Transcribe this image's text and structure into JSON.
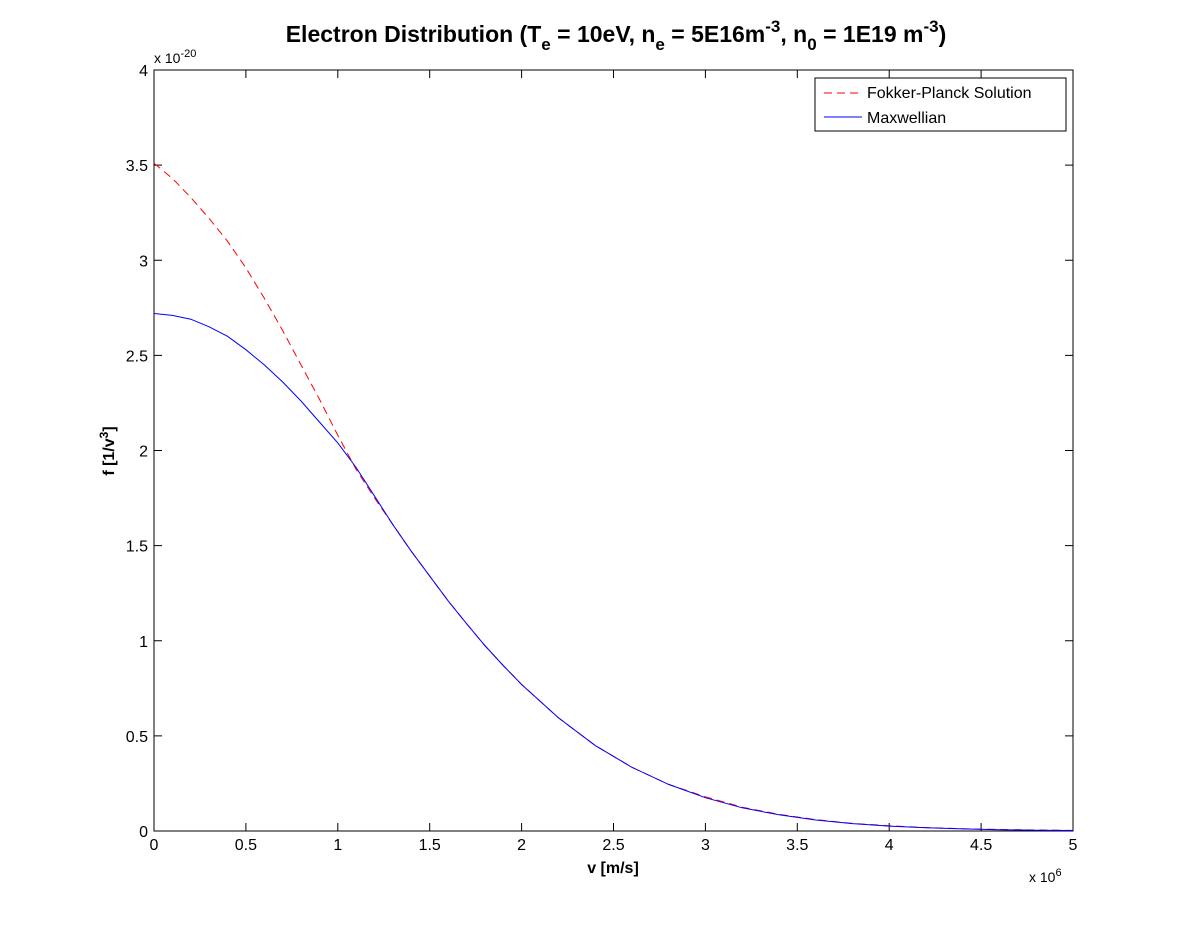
{
  "chart_data": {
    "type": "line",
    "title": {
      "text": "Electron Distribution (T",
      "sub1": "e",
      "text2": " = 10eV, n",
      "sub2": "e",
      "text3": " = 5E16m",
      "sup3": "-3",
      "text4": ", n",
      "sub4": "0",
      "text5": " = 1E19 m",
      "sup5": "-3",
      "text6": ")"
    },
    "xlabel": "v [m/s]",
    "ylabel": {
      "text": "f [1/v",
      "sup": "3",
      "end": "]"
    },
    "x_multiplier": {
      "text": "x 10",
      "sup": "6"
    },
    "y_multiplier": {
      "text": "x 10",
      "sup": "-20"
    },
    "xlim": [
      0,
      5
    ],
    "ylim": [
      0,
      4
    ],
    "xticks": [
      "0",
      "0.5",
      "1",
      "1.5",
      "2",
      "2.5",
      "3",
      "3.5",
      "4",
      "4.5",
      "5"
    ],
    "yticks": [
      "0",
      "0.5",
      "1",
      "1.5",
      "2",
      "2.5",
      "3",
      "3.5",
      "4"
    ],
    "grid": false,
    "legend_position": "top-right",
    "series": [
      {
        "name": "Fokker-Planck Solution",
        "color": "#ff0000",
        "dash": "dashed",
        "x": [
          0,
          0.1,
          0.2,
          0.3,
          0.4,
          0.5,
          0.6,
          0.7,
          0.8,
          0.9,
          1.0,
          1.1,
          1.2,
          1.3,
          1.4,
          1.5,
          1.6,
          1.7,
          1.8,
          1.9,
          2.0,
          2.2,
          2.4,
          2.6,
          2.8,
          3.0,
          3.2,
          3.4,
          3.6,
          3.8,
          4.0,
          4.2,
          4.4,
          4.6,
          4.8,
          5.0
        ],
        "y": [
          3.51,
          3.43,
          3.33,
          3.22,
          3.1,
          2.96,
          2.8,
          2.63,
          2.45,
          2.27,
          2.08,
          1.9,
          1.75,
          1.61,
          1.47,
          1.34,
          1.21,
          1.09,
          0.975,
          0.87,
          0.77,
          0.595,
          0.45,
          0.335,
          0.245,
          0.18,
          0.125,
          0.088,
          0.06,
          0.04,
          0.028,
          0.018,
          0.012,
          0.008,
          0.005,
          0.003
        ]
      },
      {
        "name": "Maxwellian",
        "color": "#0000ff",
        "dash": "solid",
        "x": [
          0,
          0.1,
          0.2,
          0.3,
          0.4,
          0.5,
          0.6,
          0.7,
          0.8,
          0.9,
          1.0,
          1.1,
          1.2,
          1.3,
          1.4,
          1.5,
          1.6,
          1.7,
          1.8,
          1.9,
          2.0,
          2.2,
          2.4,
          2.6,
          2.8,
          3.0,
          3.2,
          3.4,
          3.6,
          3.8,
          4.0,
          4.2,
          4.4,
          4.6,
          4.8,
          5.0
        ],
        "y": [
          2.72,
          2.71,
          2.69,
          2.65,
          2.6,
          2.53,
          2.45,
          2.36,
          2.26,
          2.15,
          2.04,
          1.91,
          1.76,
          1.61,
          1.47,
          1.34,
          1.21,
          1.09,
          0.975,
          0.87,
          0.77,
          0.595,
          0.45,
          0.335,
          0.245,
          0.175,
          0.122,
          0.085,
          0.058,
          0.039,
          0.026,
          0.017,
          0.011,
          0.007,
          0.004,
          0.0025
        ]
      }
    ]
  }
}
